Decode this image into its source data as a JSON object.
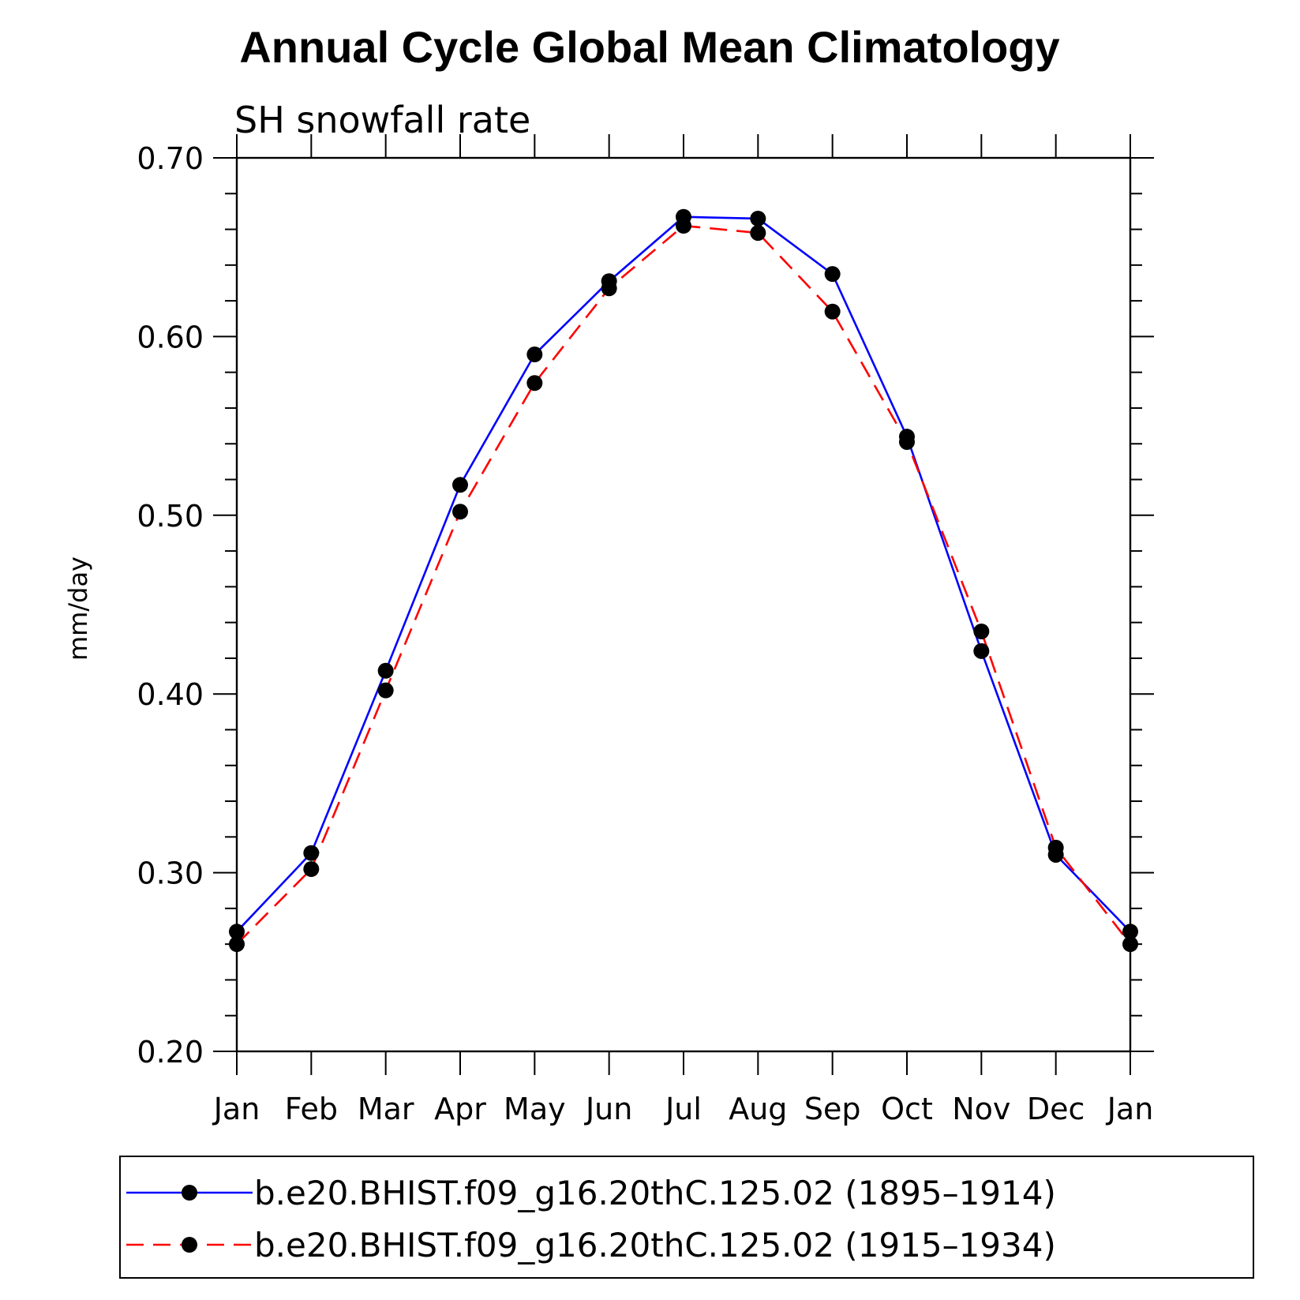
{
  "chart_data": {
    "type": "line",
    "title": "Annual Cycle Global Mean Climatology",
    "subtitle": "SH snowfall rate",
    "xlabel": "",
    "ylabel": "mm/day",
    "categories": [
      "Jan",
      "Feb",
      "Mar",
      "Apr",
      "May",
      "Jun",
      "Jul",
      "Aug",
      "Sep",
      "Oct",
      "Nov",
      "Dec",
      "Jan"
    ],
    "ylim": [
      0.2,
      0.7
    ],
    "yticks": [
      "0.20",
      "0.30",
      "0.40",
      "0.50",
      "0.60",
      "0.70"
    ],
    "grid": false,
    "legend_position": "bottom",
    "series": [
      {
        "name": "b.e20.BHIST.f09_g16.20thC.125.02 (1895–1914)",
        "color": "#0000ff",
        "dash": "solid",
        "marker": "filled-circle",
        "values": [
          0.267,
          0.311,
          0.413,
          0.517,
          0.59,
          0.631,
          0.667,
          0.666,
          0.635,
          0.544,
          0.424,
          0.31,
          0.267
        ]
      },
      {
        "name": "b.e20.BHIST.f09_g16.20thC.125.02 (1915–1934)",
        "color": "#ff0000",
        "dash": "dashed",
        "marker": "filled-circle",
        "values": [
          0.26,
          0.302,
          0.402,
          0.502,
          0.574,
          0.627,
          0.662,
          0.658,
          0.614,
          0.541,
          0.435,
          0.314,
          0.26
        ]
      }
    ]
  }
}
